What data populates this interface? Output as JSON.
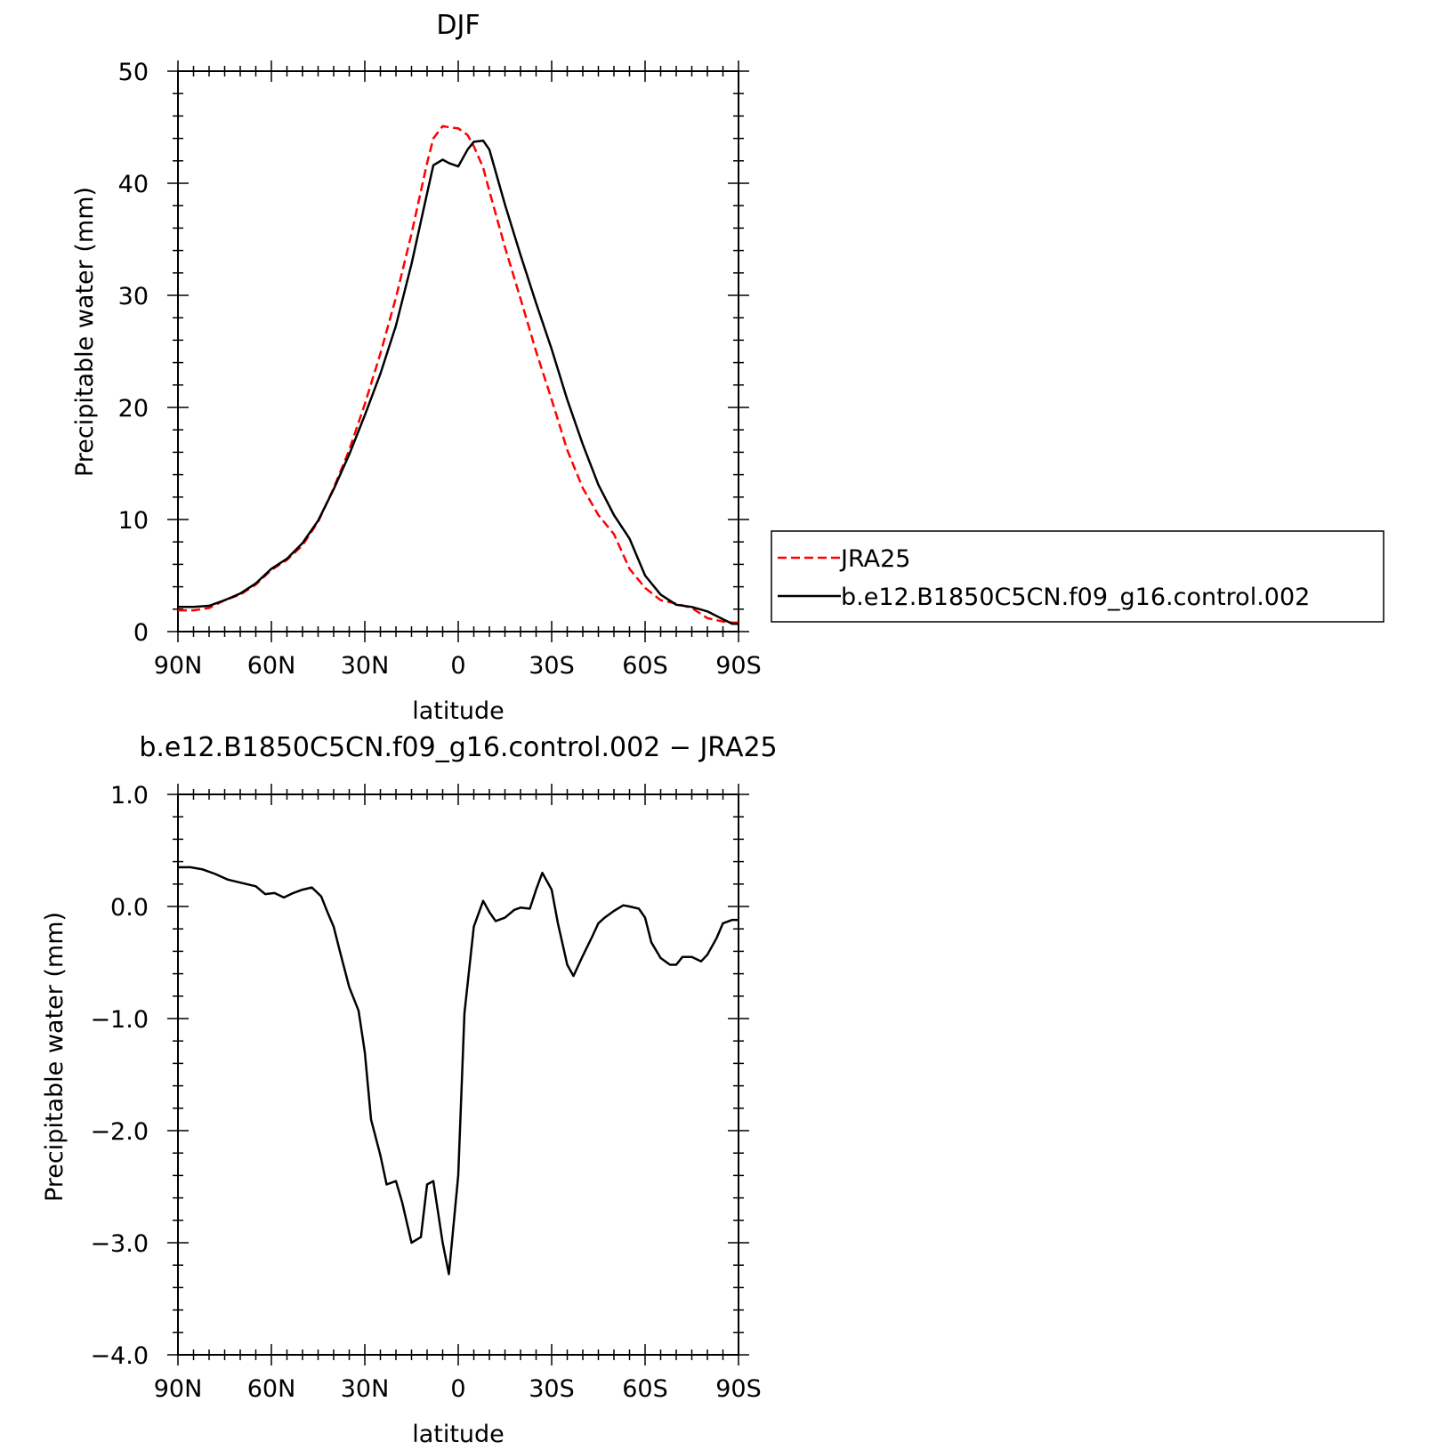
{
  "chart_data": [
    {
      "type": "line",
      "title": "DJF",
      "xlabel": "latitude",
      "ylabel": "Precipitable water (mm)",
      "xlim": [
        90,
        -90
      ],
      "ylim": [
        0,
        50
      ],
      "xticks": [
        90,
        60,
        30,
        0,
        -30,
        -60,
        -90
      ],
      "xtick_labels": [
        "90N",
        "60N",
        "30N",
        "0",
        "30S",
        "60S",
        "90S"
      ],
      "yticks": [
        0,
        10,
        20,
        30,
        40,
        50
      ],
      "ytick_labels": [
        "0",
        "10",
        "20",
        "30",
        "40",
        "50"
      ],
      "grid": false,
      "legend": "right",
      "series": [
        {
          "name": "JRA25",
          "color": "#ff0000",
          "dash": "dashed",
          "x": [
            90,
            85,
            80,
            75,
            70,
            65,
            60,
            55,
            50,
            45,
            40,
            35,
            30,
            25,
            20,
            15,
            10,
            8,
            5,
            3,
            0,
            -3,
            -5,
            -8,
            -10,
            -15,
            -20,
            -25,
            -30,
            -35,
            -40,
            -45,
            -50,
            -55,
            -60,
            -65,
            -70,
            -75,
            -80,
            -85,
            -88,
            -90
          ],
          "y": [
            1.9,
            1.9,
            2.1,
            2.8,
            3.3,
            4.2,
            5.5,
            6.4,
            7.7,
            9.8,
            12.8,
            16.2,
            20.3,
            24.8,
            29.8,
            35.5,
            41.8,
            44.0,
            45.1,
            45.0,
            44.9,
            44.3,
            43.3,
            41.4,
            39.3,
            34.3,
            29.7,
            25.0,
            20.7,
            16.2,
            12.8,
            10.4,
            8.7,
            5.6,
            3.9,
            2.8,
            2.5,
            2.1,
            1.2,
            0.9,
            0.8,
            0.8
          ]
        },
        {
          "name": "b.e12.B1850C5CN.f09_g16.control.002",
          "color": "#000000",
          "dash": "solid",
          "x": [
            90,
            85,
            80,
            75,
            70,
            65,
            60,
            55,
            50,
            45,
            40,
            35,
            30,
            25,
            20,
            15,
            10,
            8,
            5,
            3,
            0,
            -3,
            -5,
            -8,
            -10,
            -15,
            -20,
            -25,
            -30,
            -35,
            -40,
            -45,
            -50,
            -55,
            -60,
            -65,
            -70,
            -75,
            -80,
            -85,
            -88,
            -90
          ],
          "y": [
            2.2,
            2.2,
            2.3,
            2.8,
            3.4,
            4.3,
            5.6,
            6.5,
            7.9,
            9.9,
            12.7,
            15.8,
            19.3,
            23.0,
            27.3,
            32.8,
            39.1,
            41.6,
            42.1,
            41.8,
            41.5,
            43.0,
            43.7,
            43.8,
            43.0,
            38.1,
            33.6,
            29.3,
            25.2,
            20.7,
            16.7,
            13.1,
            10.4,
            8.3,
            5.0,
            3.3,
            2.4,
            2.2,
            1.8,
            1.1,
            0.7,
            0.7
          ]
        }
      ]
    },
    {
      "type": "line",
      "title": "b.e12.B1850C5CN.f09_g16.control.002 − JRA25",
      "xlabel": "latitude",
      "ylabel": "Precipitable water (mm)",
      "xlim": [
        90,
        -90
      ],
      "ylim": [
        -4.0,
        1.0
      ],
      "xticks": [
        90,
        60,
        30,
        0,
        -30,
        -60,
        -90
      ],
      "xtick_labels": [
        "90N",
        "60N",
        "30N",
        "0",
        "30S",
        "60S",
        "90S"
      ],
      "yticks": [
        -4.0,
        -3.0,
        -2.0,
        -1.0,
        0.0,
        1.0
      ],
      "ytick_labels": [
        "−4.0",
        "−3.0",
        "−2.0",
        "−1.0",
        "0.0",
        "1.0"
      ],
      "grid": false,
      "series": [
        {
          "color": "#000000",
          "dash": "solid",
          "x": [
            90,
            86,
            82,
            78,
            74,
            71,
            68,
            65,
            62,
            59,
            56,
            53,
            50,
            47,
            44,
            42,
            40,
            38,
            35,
            32,
            30,
            28,
            25,
            23,
            20,
            18,
            15,
            12,
            10,
            8,
            5,
            3,
            0,
            -2,
            -5,
            -8,
            -10,
            -12,
            -15,
            -18,
            -20,
            -23,
            -25,
            -27,
            -30,
            -32,
            -35,
            -37,
            -40,
            -43,
            -45,
            -47,
            -50,
            -53,
            -55,
            -58,
            -60,
            -62,
            -65,
            -68,
            -70,
            -72,
            -75,
            -78,
            -80,
            -83,
            -85,
            -88,
            -90
          ],
          "y": [
            0.35,
            0.35,
            0.33,
            0.29,
            0.24,
            0.22,
            0.2,
            0.18,
            0.11,
            0.12,
            0.08,
            0.12,
            0.15,
            0.17,
            0.09,
            -0.05,
            -0.18,
            -0.4,
            -0.72,
            -0.93,
            -1.3,
            -1.9,
            -2.22,
            -2.48,
            -2.45,
            -2.64,
            -3.0,
            -2.95,
            -2.48,
            -2.45,
            -3.0,
            -3.28,
            -2.4,
            -0.95,
            -0.18,
            0.05,
            -0.05,
            -0.13,
            -0.1,
            -0.03,
            -0.01,
            -0.02,
            0.15,
            0.3,
            0.15,
            -0.15,
            -0.52,
            -0.62,
            -0.44,
            -0.27,
            -0.15,
            -0.1,
            -0.04,
            0.01,
            0.0,
            -0.02,
            -0.1,
            -0.32,
            -0.46,
            -0.52,
            -0.52,
            -0.45,
            -0.45,
            -0.49,
            -0.43,
            -0.28,
            -0.15,
            -0.12,
            -0.12
          ]
        }
      ]
    }
  ]
}
